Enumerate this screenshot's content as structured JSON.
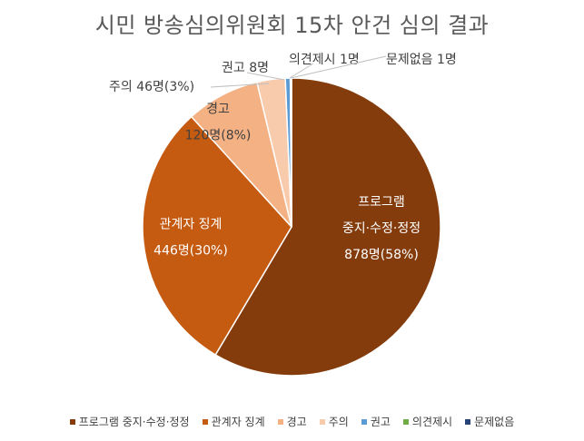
{
  "chart_data": {
    "type": "pie",
    "title": "시민 방송심의위원회 15차 안건 심의 결과",
    "slices": [
      {
        "name": "프로그램 중지·수정·정정",
        "label_lines": [
          "프로그램",
          "중지·수정·정정",
          "878명(58%)"
        ],
        "value": 878,
        "color": "#843C0C"
      },
      {
        "name": "관계자 징계",
        "label_lines": [
          "관계자 징계",
          "446명(30%)"
        ],
        "value": 446,
        "color": "#C55A11"
      },
      {
        "name": "경고",
        "label_lines": [
          "경고",
          "120명(8%)"
        ],
        "value": 120,
        "color": "#F4B183"
      },
      {
        "name": "주의",
        "label_lines": [
          "주의 46명(3%)"
        ],
        "value": 46,
        "color": "#F8CBAD"
      },
      {
        "name": "권고",
        "label_lines": [
          "권고 8명"
        ],
        "value": 8,
        "color": "#5B9BD5"
      },
      {
        "name": "의견제시",
        "label_lines": [
          "의견제시 1명"
        ],
        "value": 1,
        "color": "#70AD47"
      },
      {
        "name": "문제없음",
        "label_lines": [
          "문제없음 1명"
        ],
        "value": 1,
        "color": "#264478"
      }
    ],
    "legend_position": "bottom"
  }
}
